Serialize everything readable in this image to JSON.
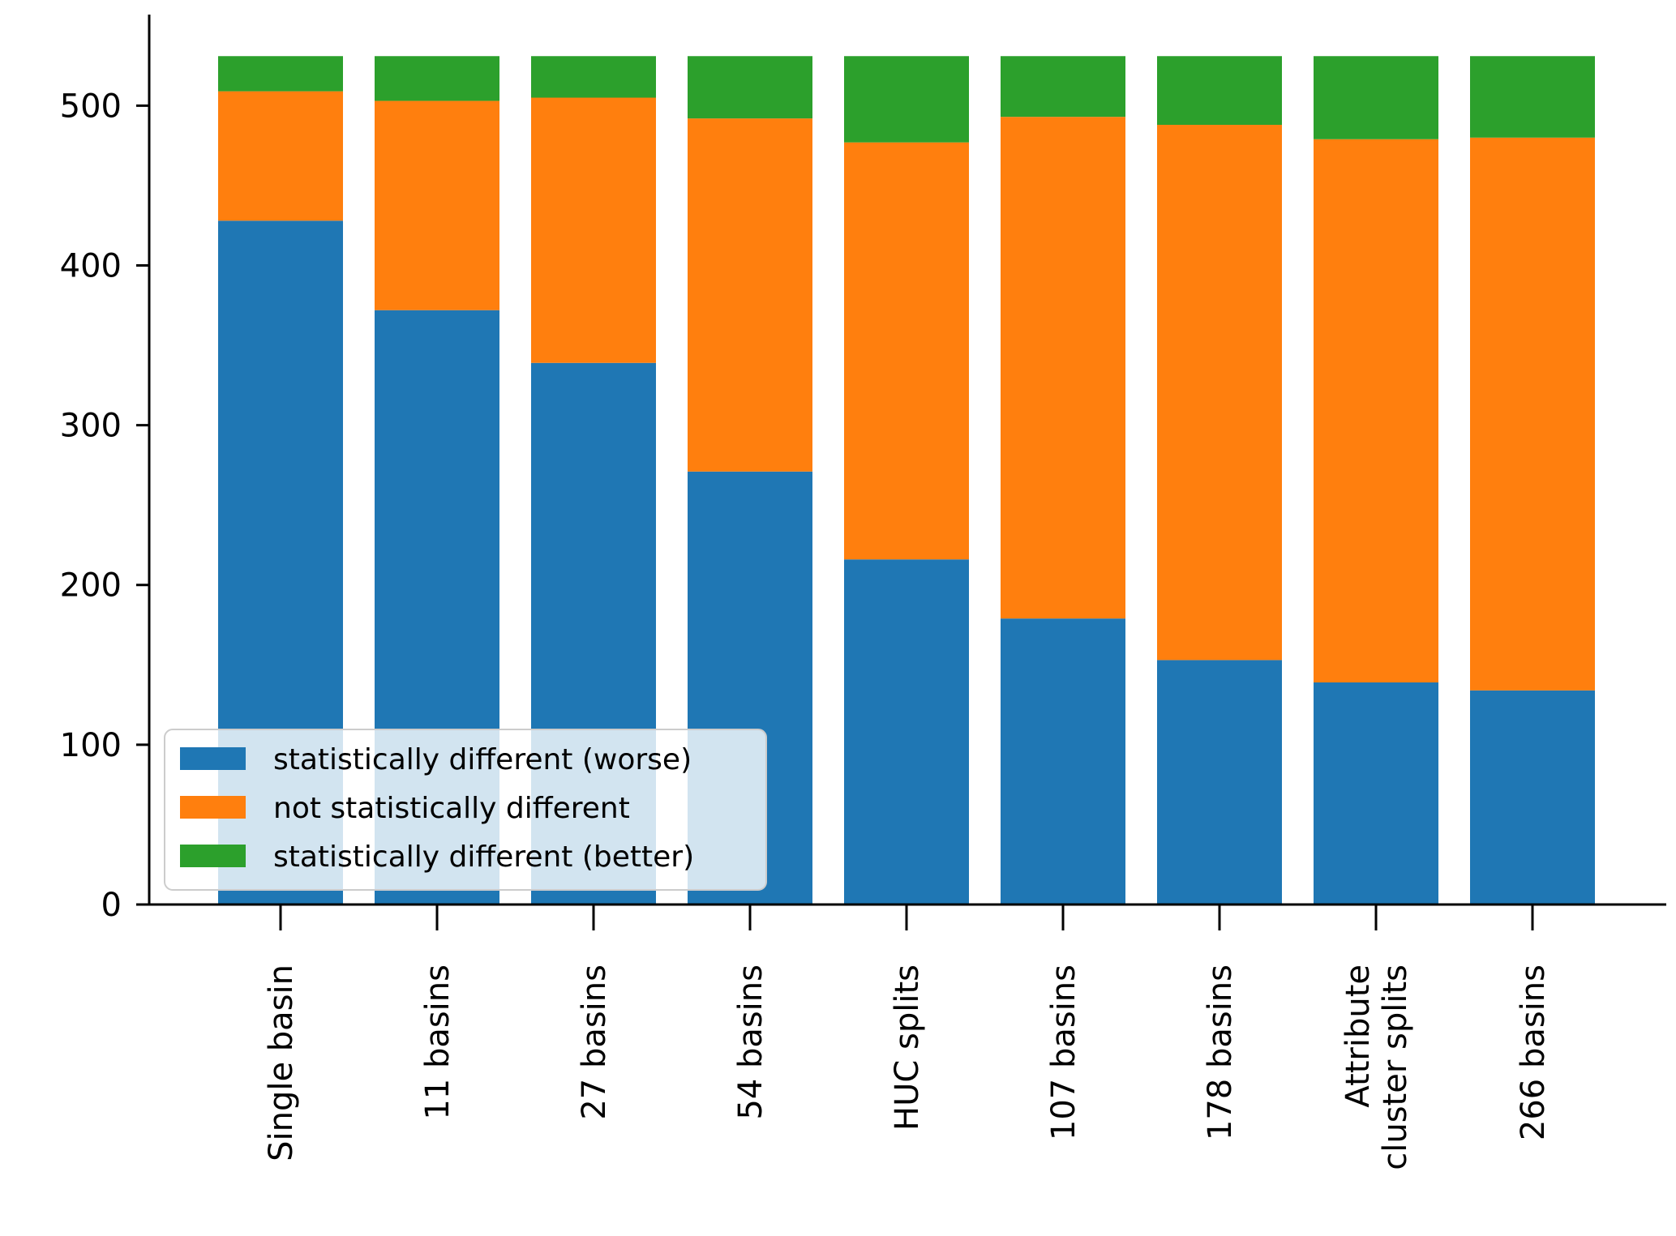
{
  "chart_data": {
    "type": "bar",
    "stacked": true,
    "title": "",
    "xlabel": "",
    "ylabel": "",
    "categories": [
      "Single basin",
      "11 basins",
      "27 basins",
      "54 basins",
      "HUC splits",
      "107 basins",
      "178 basins",
      "Attribute cluster splits",
      "266 basins"
    ],
    "category_lines": [
      [
        "Single basin"
      ],
      [
        "11 basins"
      ],
      [
        "27 basins"
      ],
      [
        "54 basins"
      ],
      [
        "HUC splits"
      ],
      [
        "107 basins"
      ],
      [
        "178 basins"
      ],
      [
        "Attribute",
        "cluster splits"
      ],
      [
        "266 basins"
      ]
    ],
    "series": [
      {
        "name": "statistically different (worse)",
        "color": "#1f77b4",
        "values": [
          428,
          372,
          339,
          271,
          216,
          179,
          153,
          139,
          134
        ]
      },
      {
        "name": "not statistically different",
        "color": "#ff7f0e",
        "values": [
          81,
          131,
          166,
          221,
          261,
          314,
          335,
          340,
          346
        ]
      },
      {
        "name": "statistically different (better)",
        "color": "#2ca02c",
        "values": [
          22,
          28,
          26,
          39,
          54,
          38,
          43,
          52,
          51
        ]
      }
    ],
    "ylim": [
      0,
      557
    ],
    "yticks": [
      0,
      100,
      200,
      300,
      400,
      500
    ],
    "legend_position": "lower-left",
    "grid": false
  }
}
